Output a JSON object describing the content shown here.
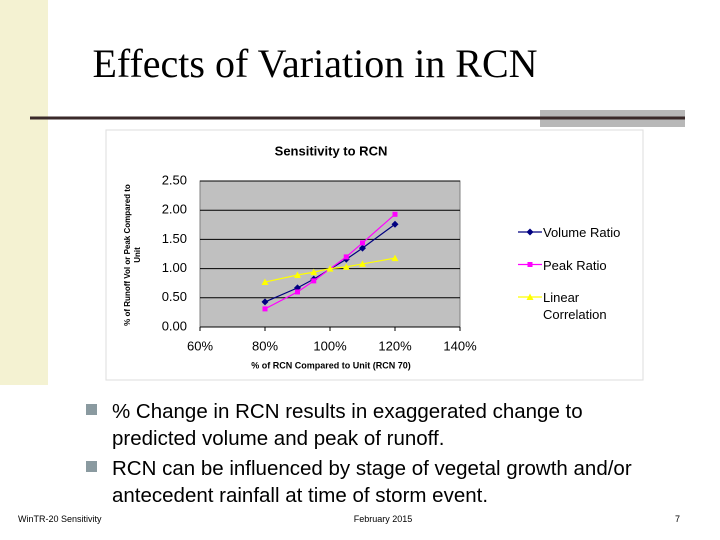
{
  "title": "Effects of Variation in RCN",
  "chart_data": {
    "type": "line",
    "title": "Sensitivity to RCN",
    "x_label": "% of RCN Compared to Unit (RCN 70)",
    "y_label": "% of Runoff Vol or Peak Compared to Unit",
    "xlim": [
      60,
      140
    ],
    "xticks": [
      {
        "value": 60,
        "label": "60%"
      },
      {
        "value": 80,
        "label": "80%"
      },
      {
        "value": 100,
        "label": "100%"
      },
      {
        "value": 120,
        "label": "120%"
      },
      {
        "value": 140,
        "label": "140%"
      }
    ],
    "ylim": [
      0,
      2.5
    ],
    "yticks": [
      {
        "value": 0,
        "label": "0.00"
      },
      {
        "value": 0.5,
        "label": "0.50"
      },
      {
        "value": 1,
        "label": "1.00"
      },
      {
        "value": 1.5,
        "label": "1.50"
      },
      {
        "value": 2,
        "label": "2.00"
      },
      {
        "value": 2.5,
        "label": "2.50"
      }
    ],
    "grid": true,
    "legend": "right",
    "series": [
      {
        "name": "Volume Ratio",
        "color": "#000080",
        "marker": "diamond",
        "x": [
          80,
          90,
          95,
          105,
          110,
          120
        ],
        "values": [
          0.43,
          0.67,
          0.82,
          1.16,
          1.35,
          1.76
        ]
      },
      {
        "name": "Peak Ratio",
        "color": "#ff00ff",
        "marker": "square",
        "x": [
          80,
          90,
          95,
          105,
          110,
          120
        ],
        "values": [
          0.31,
          0.6,
          0.79,
          1.2,
          1.44,
          1.93
        ]
      },
      {
        "name": "Linear Correlation",
        "color": "#ffff00",
        "marker": "triangle",
        "x": [
          80,
          90,
          95,
          100,
          105,
          110,
          120
        ],
        "values": [
          0.77,
          0.89,
          0.94,
          1.0,
          1.03,
          1.08,
          1.18
        ]
      }
    ]
  },
  "bullets": [
    "% Change in RCN results in exaggerated change to predicted volume and peak of runoff.",
    "RCN can be influenced by stage of vegetal growth and/or antecedent rainfall at time of storm event."
  ],
  "footer": {
    "left": "WinTR-20 Sensitivity",
    "center": "February 2015",
    "page": 7
  }
}
